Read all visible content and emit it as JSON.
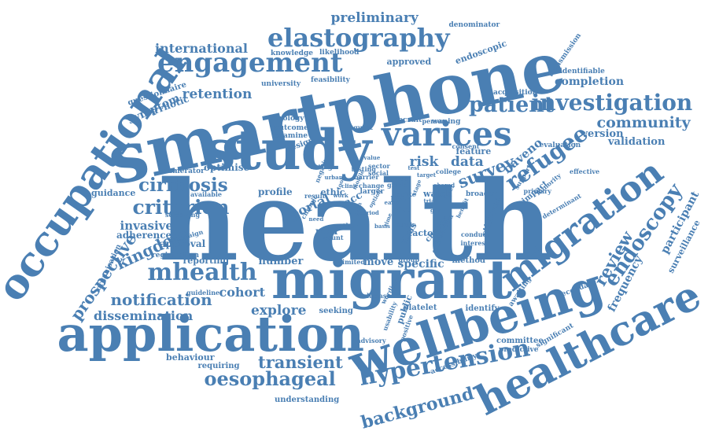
{
  "style": {
    "ink_color": "#4a7fb3",
    "background": "#ffffff"
  },
  "words": [
    "health",
    "smartphone",
    "study",
    "migrant",
    "wellbeing",
    "application",
    "healthcare",
    "occupational",
    "migration",
    "varices",
    "engagement",
    "elastography",
    "hypertension",
    "mhealth",
    "investigation",
    "refugee",
    "patient",
    "oesophageal",
    "endoscopy",
    "criterion",
    "cirrhosis",
    "kingdom",
    "prospective",
    "notification",
    "transient",
    "survey",
    "review",
    "background",
    "community",
    "risk",
    "data",
    "dissemination",
    "preliminary",
    "international",
    "retention",
    "explore",
    "cohort",
    "invasive",
    "baveno",
    "participant",
    "frequency",
    "completion",
    "version",
    "validation",
    "surveillance",
    "portal",
    "specific",
    "number",
    "profile",
    "optimise",
    "adherence",
    "approval",
    "reporting",
    "guidance",
    "behaviour",
    "requiring",
    "understanding",
    "seeking",
    "public",
    "platelet",
    "identify",
    "committee",
    "predictive",
    "significant",
    "secondary",
    "awaiting",
    "move",
    "peer",
    "factor",
    "virus",
    "rate",
    "liver",
    "acc",
    "ethic",
    "symptom",
    "cirrhotic",
    "questionnaire",
    "knowledge",
    "likelihood",
    "approved",
    "endoscopic",
    "denominator",
    "transmission",
    "identifiable",
    "acquisition",
    "evaluation",
    "effective",
    "primary",
    "determinant",
    "impact",
    "stiffness",
    "watch",
    "broader",
    "conduct",
    "interest",
    "method",
    "feature",
    "consent",
    "waning",
    "request",
    "recruit",
    "person",
    "university",
    "feasibility",
    "serology",
    "outcome",
    "examine",
    "design",
    "numerator",
    "available",
    "screening",
    "campaign",
    "registration",
    "organisation",
    "guideline",
    "advisory",
    "positive",
    "usability",
    "disease",
    "limited",
    "count",
    "group",
    "wording",
    "collection",
    "chadox",
    "spike",
    "larger",
    "change",
    "barrier",
    "testing",
    "college",
    "accessibility",
    "minority",
    "support",
    "negative",
    "gather",
    "chronic",
    "result",
    "rating",
    "social",
    "sector",
    "grade",
    "value",
    "work",
    "early",
    "mobile",
    "basis",
    "stage",
    "urban",
    "plan",
    "target",
    "trial",
    "gene",
    "need",
    "benefit",
    "tool",
    "ethnic",
    "option",
    "drug",
    "shared",
    "time",
    "gap",
    "level",
    "clinic",
    "test",
    "period",
    "future"
  ]
}
